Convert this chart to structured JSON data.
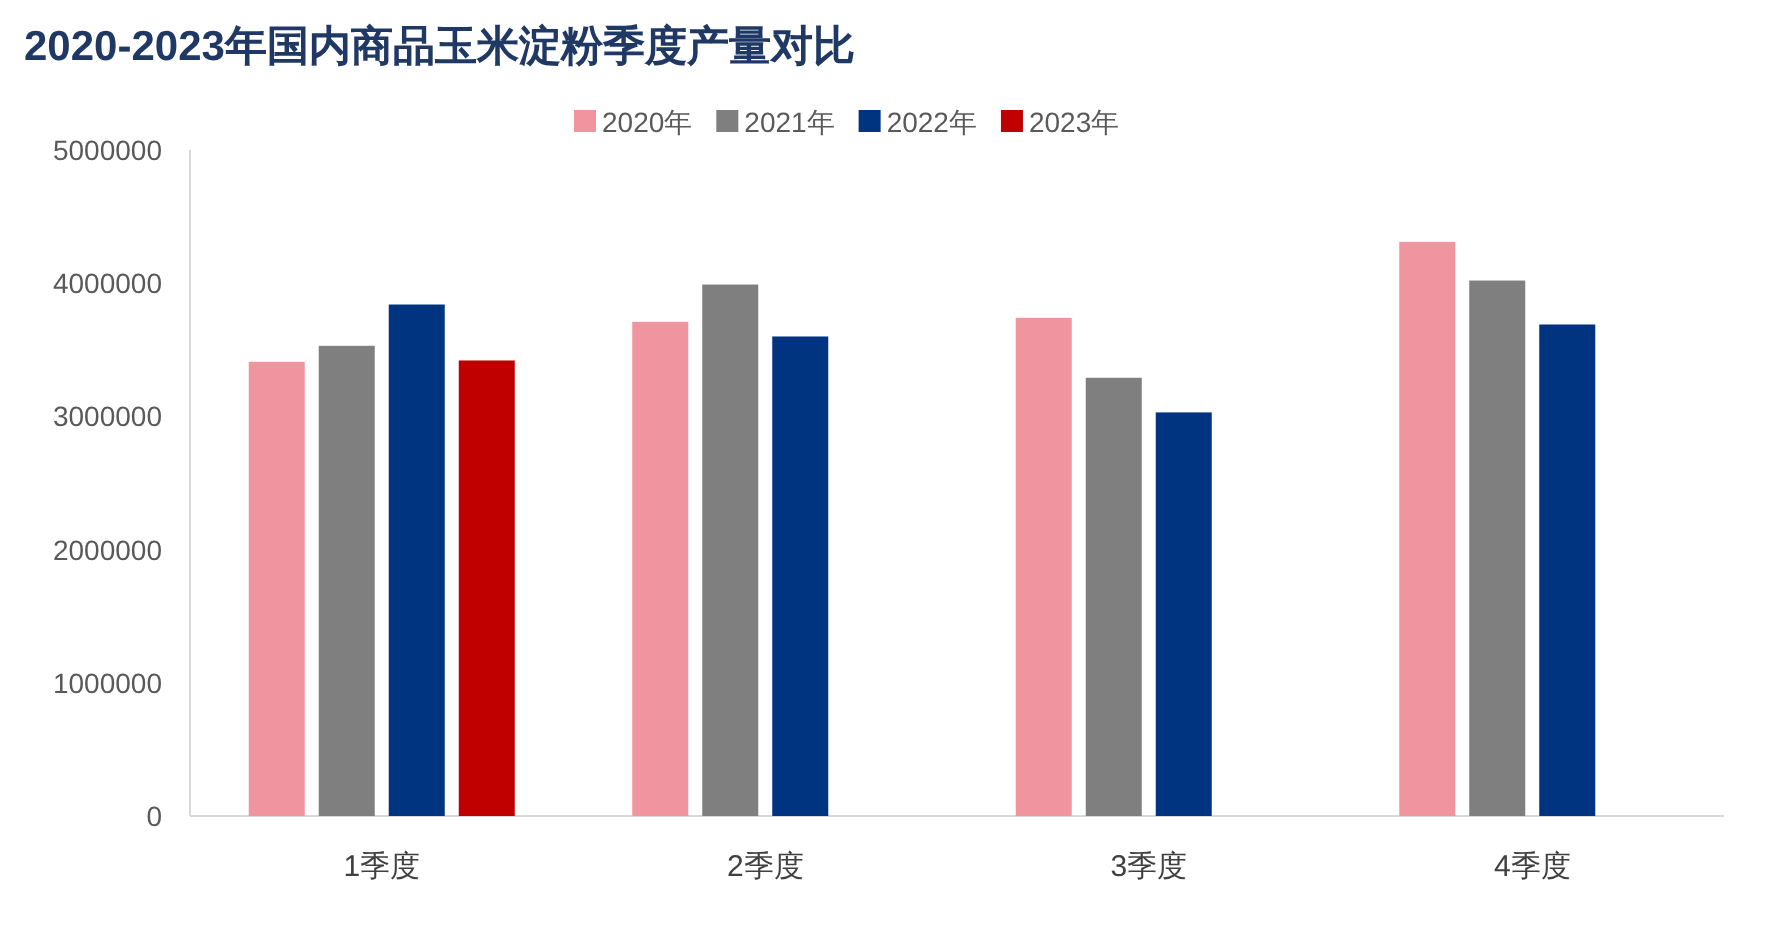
{
  "chart_data": {
    "type": "bar",
    "title": "2020-2023年国内商品玉米淀粉季度产量对比",
    "categories": [
      "1季度",
      "2季度",
      "3季度",
      "4季度"
    ],
    "series": [
      {
        "name": "2020年",
        "color": "#f0959f",
        "values": [
          3410000,
          3710000,
          3740000,
          4310000
        ]
      },
      {
        "name": "2021年",
        "color": "#7f7f7f",
        "values": [
          3530000,
          3990000,
          3290000,
          4020000
        ]
      },
      {
        "name": "2022年",
        "color": "#003380",
        "values": [
          3840000,
          3600000,
          3030000,
          3690000
        ]
      },
      {
        "name": "2023年",
        "color": "#c00000",
        "values": [
          3420000,
          null,
          null,
          null
        ]
      }
    ],
    "ylim": [
      0,
      5000000
    ],
    "yticks": [
      0,
      1000000,
      2000000,
      3000000,
      4000000,
      5000000
    ],
    "grid": false,
    "legend": "top"
  }
}
